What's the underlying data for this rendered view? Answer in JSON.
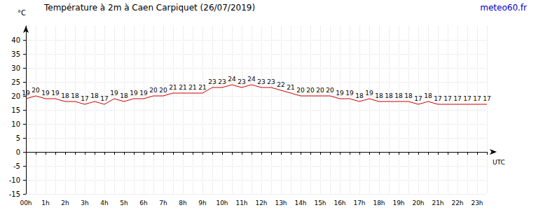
{
  "chart_data": {
    "type": "line",
    "title": "Température à 2m à Caen Carpiquet (26/07/2019)",
    "annotations": [
      "meteo60.fr"
    ],
    "x_label": "UTC",
    "y_label": "°C",
    "categories": [
      "00h",
      null,
      "1h",
      null,
      "2h",
      null,
      "3h",
      null,
      "4h",
      null,
      "5h",
      null,
      "6h",
      null,
      "7h",
      null,
      "8h",
      null,
      "9h",
      null,
      "10h",
      null,
      "11h",
      null,
      "12h",
      null,
      "13h",
      null,
      "14h",
      null,
      "15h",
      null,
      "16h",
      null,
      "17h",
      null,
      "18h",
      null,
      "19h",
      null,
      "20h",
      null,
      "21h",
      null,
      "22h",
      null,
      "23h",
      null
    ],
    "values": [
      19,
      20,
      19,
      19,
      18,
      18,
      17,
      18,
      17,
      19,
      18,
      19,
      19,
      20,
      20,
      21,
      21,
      21,
      21,
      23,
      23,
      24,
      23,
      24,
      23,
      23,
      22,
      21,
      20,
      20,
      20,
      20,
      19,
      19,
      18,
      19,
      18,
      18,
      18,
      18,
      17,
      18,
      17,
      17,
      17,
      17,
      17,
      17
    ],
    "color": "#cc0000",
    "ylim": [
      -15,
      45
    ],
    "yticks": [
      -15,
      -10,
      -5,
      0,
      5,
      10,
      15,
      20,
      25,
      30,
      35,
      40
    ],
    "grid": true,
    "data_labels": true
  }
}
